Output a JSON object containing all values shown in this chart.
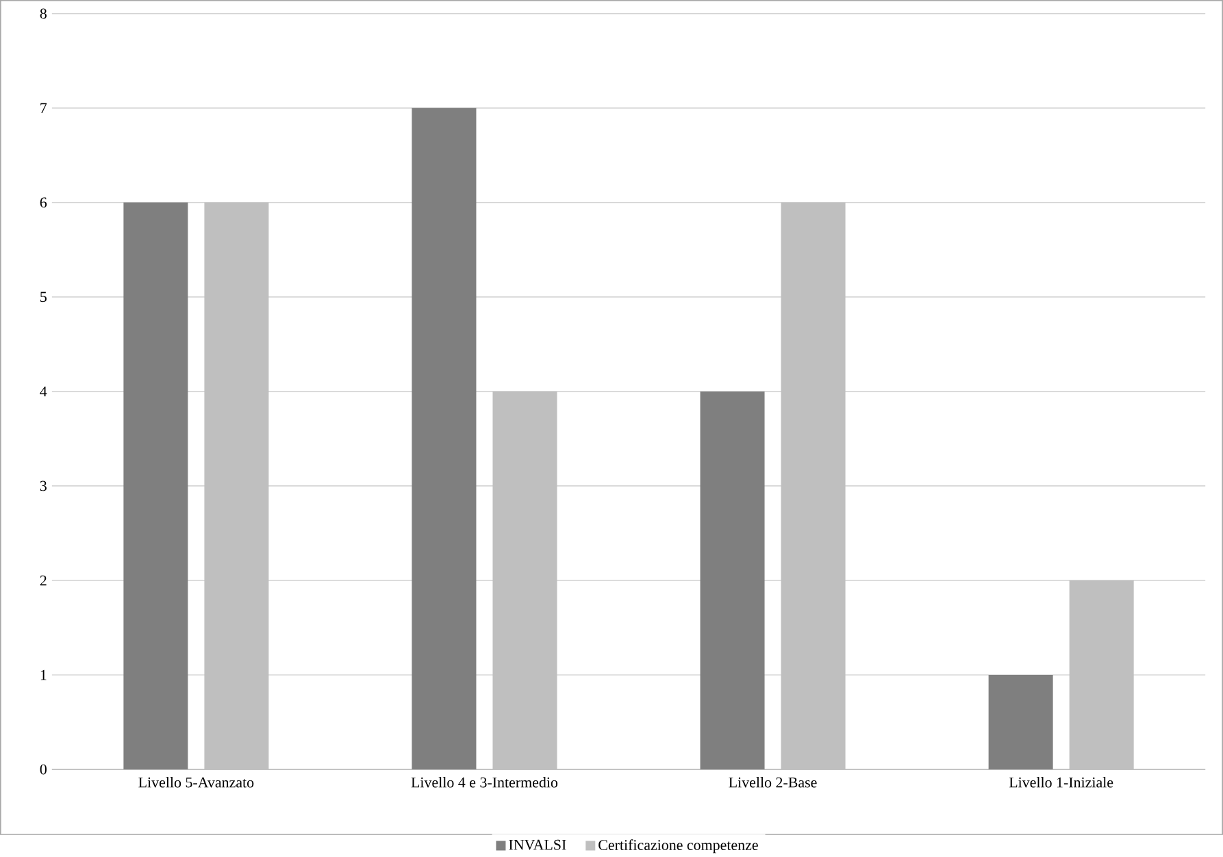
{
  "chart_data": {
    "type": "bar",
    "categories": [
      "Livello 5-Avanzato",
      "Livello 4 e 3-Intermedio",
      "Livello 2-Base",
      "Livello 1-Iniziale"
    ],
    "series": [
      {
        "name": "INVALSI",
        "color": "#7f7f7f",
        "values": [
          6,
          7,
          4,
          1
        ]
      },
      {
        "name": "Certificazione competenze",
        "color": "#bfbfbf",
        "values": [
          6,
          4,
          6,
          2
        ]
      }
    ],
    "ylim": [
      0,
      8
    ],
    "yticks": [
      0,
      1,
      2,
      3,
      4,
      5,
      6,
      7,
      8
    ],
    "grid": "y",
    "legend": "bottom"
  }
}
